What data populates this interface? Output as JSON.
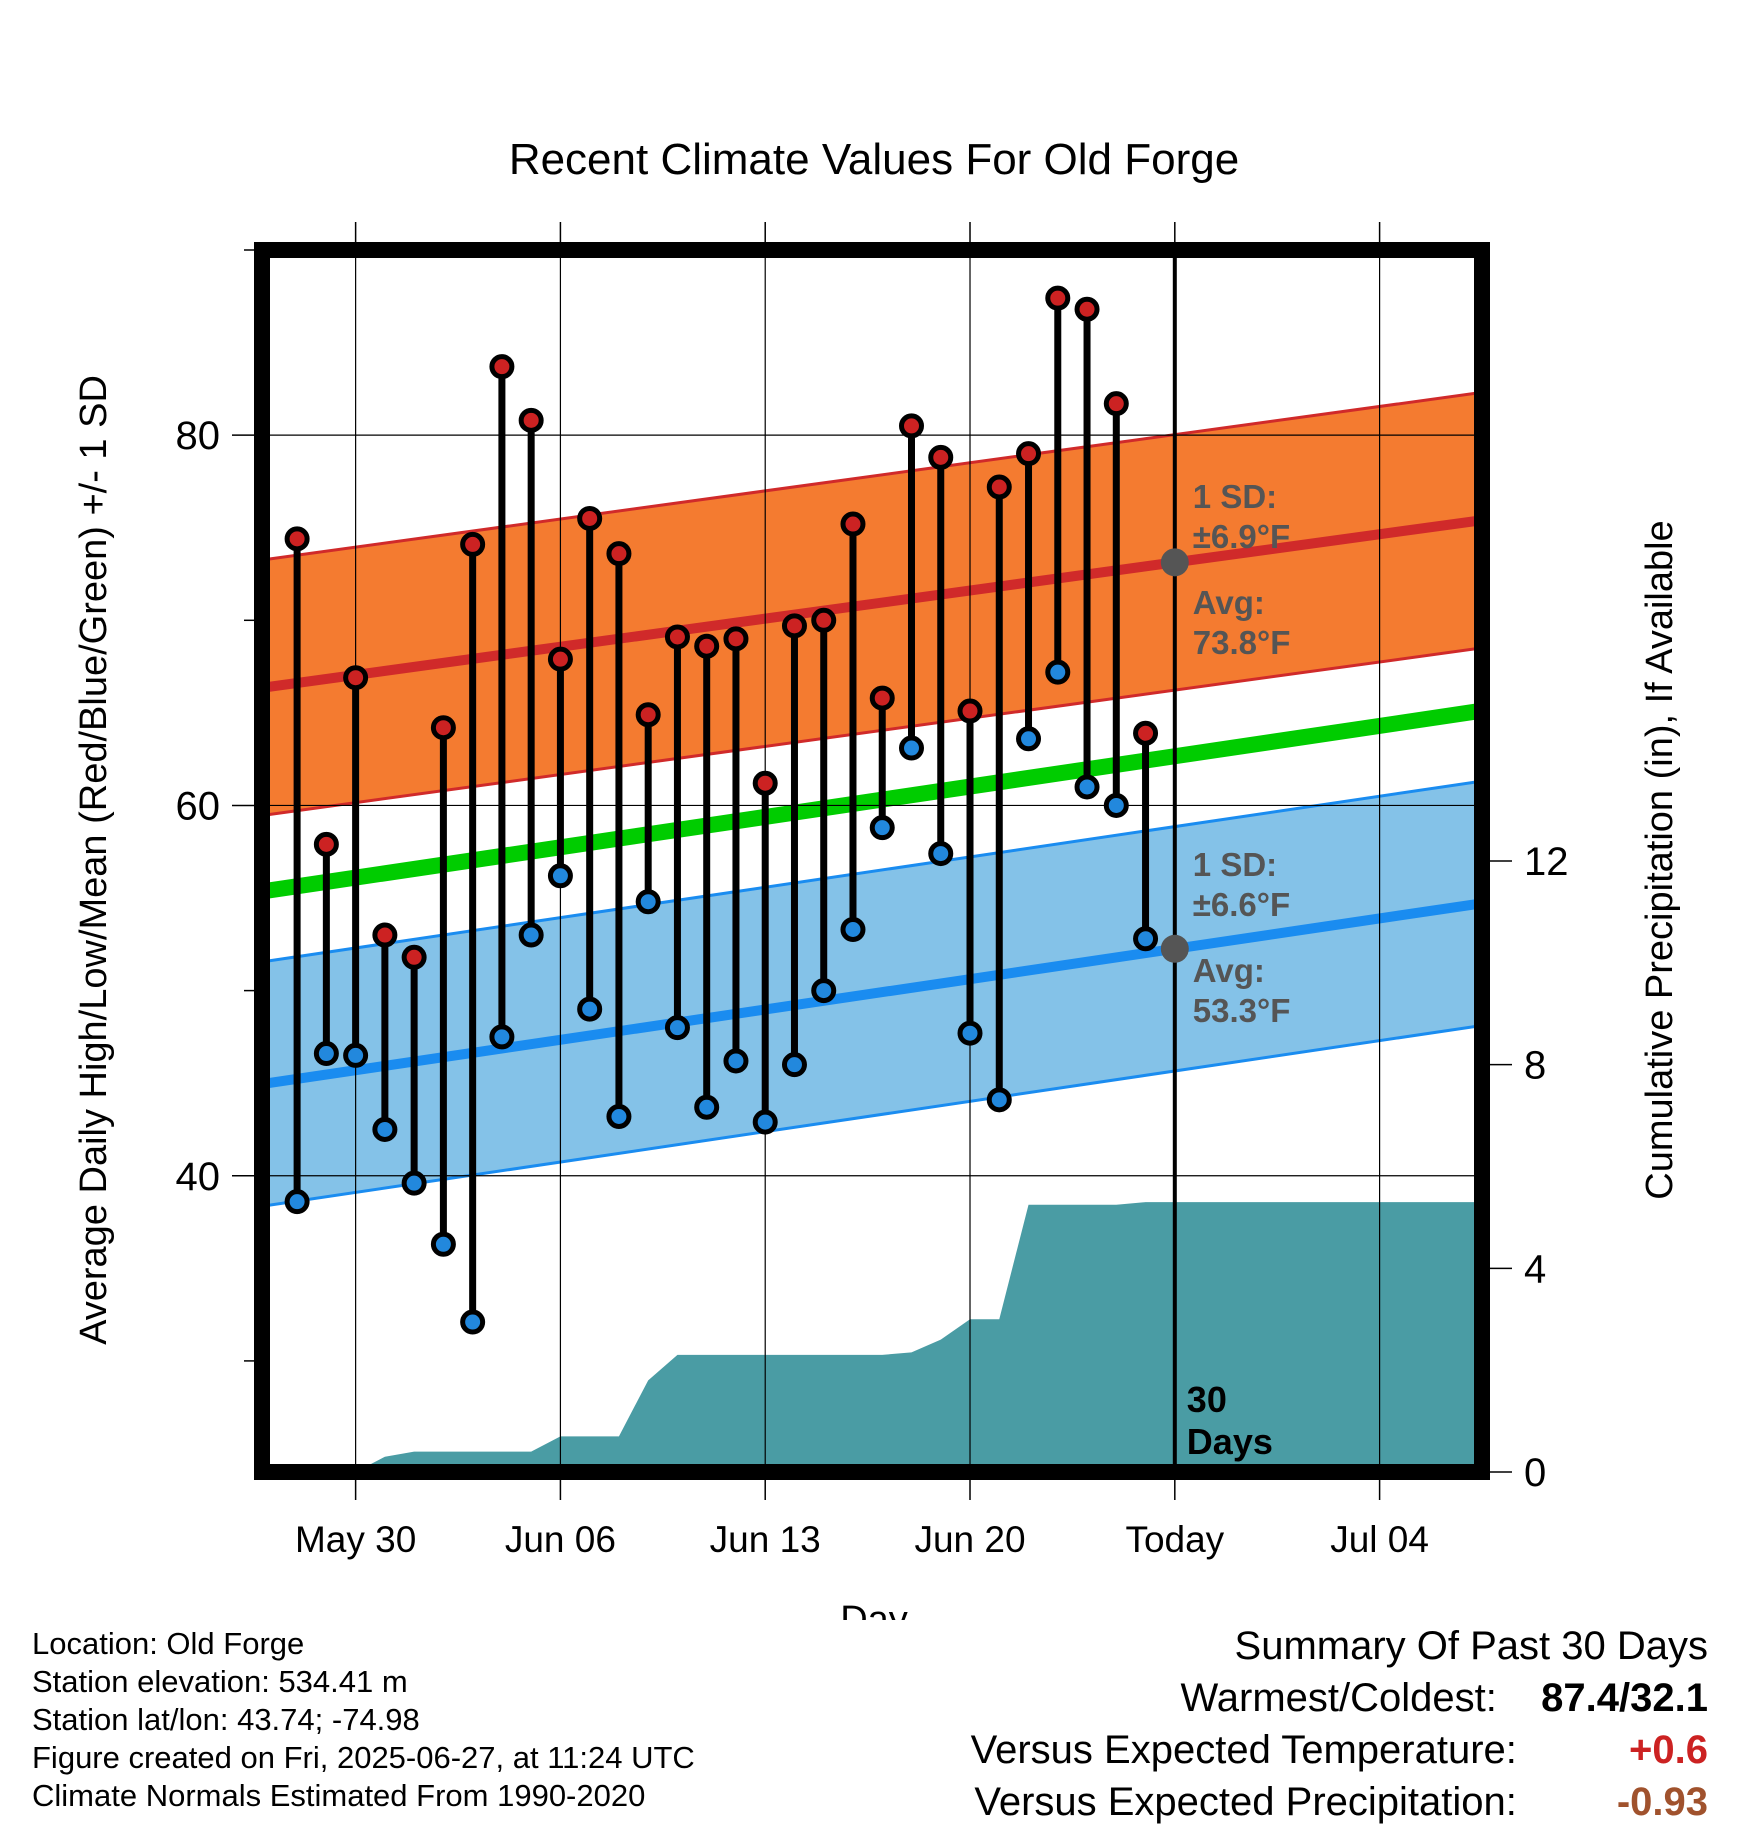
{
  "title": "Recent Climate Values For Old Forge",
  "chart_data": {
    "type": "line",
    "title": "Recent Climate Values For Old Forge",
    "xlabel": "Day",
    "ylabel": "Average Daily High/Low/Mean (Red/Blue/Green) +/- 1 SD",
    "y2label": "Cumulative Precipitation (in), If Available",
    "ylim": [
      24,
      90
    ],
    "y2lim": [
      0,
      24
    ],
    "yticks": [
      40,
      60,
      80
    ],
    "y2ticks": [
      0,
      4,
      8,
      12
    ],
    "xtick_labels": [
      "May 30",
      "Jun 06",
      "Jun 13",
      "Jun 20",
      "Today",
      "Jul 04"
    ],
    "xtick_days": [
      3,
      10,
      17,
      24,
      31,
      38
    ],
    "x_range_days": [
      -0.2,
      41.5
    ],
    "grid": true,
    "today_day": 31,
    "window_label_line1": "30",
    "window_label_line2": "Days",
    "days": [
      1,
      2,
      3,
      4,
      5,
      6,
      7,
      8,
      9,
      10,
      11,
      12,
      13,
      14,
      15,
      16,
      17,
      18,
      19,
      20,
      21,
      22,
      23,
      24,
      25,
      26,
      27,
      28,
      29,
      30
    ],
    "highs": [
      74.4,
      57.9,
      66.9,
      53.0,
      51.8,
      64.2,
      74.1,
      83.7,
      80.8,
      67.9,
      75.5,
      73.6,
      64.9,
      69.1,
      68.6,
      69.0,
      61.2,
      69.7,
      70.0,
      75.2,
      65.8,
      80.5,
      78.8,
      65.1,
      77.2,
      79.0,
      87.4,
      86.8,
      81.7,
      63.9
    ],
    "lows": [
      38.6,
      46.6,
      46.5,
      42.5,
      39.6,
      36.3,
      32.1,
      47.5,
      53.0,
      56.2,
      49.0,
      43.2,
      54.8,
      48.0,
      43.7,
      46.2,
      42.9,
      46.0,
      50.0,
      53.3,
      58.8,
      63.1,
      57.4,
      47.7,
      44.1,
      63.6,
      67.2,
      61.0,
      60.0,
      52.8
    ],
    "normals_days": [
      0,
      41
    ],
    "normal_high": [
      66.4,
      75.3
    ],
    "normal_low": [
      45.0,
      54.6
    ],
    "normal_mean": [
      55.4,
      65.0
    ],
    "high_sd": 6.9,
    "low_sd": 6.6,
    "precip_days": [
      3,
      4,
      5,
      6,
      7,
      8,
      9,
      10,
      11,
      12,
      13,
      14,
      15,
      16,
      17,
      18,
      19,
      20,
      21,
      22,
      23,
      24,
      25,
      26,
      27,
      28,
      29,
      30,
      31,
      41.5
    ],
    "precip_cumulative": [
      0.0,
      0.3,
      0.4,
      0.4,
      0.4,
      0.4,
      0.4,
      0.7,
      0.7,
      0.7,
      1.8,
      2.3,
      2.3,
      2.3,
      2.3,
      2.3,
      2.3,
      2.3,
      2.3,
      2.35,
      2.6,
      3.0,
      3.0,
      5.25,
      5.25,
      5.25,
      5.25,
      5.3,
      5.3,
      5.3
    ],
    "annotations": {
      "high_sd_line1": "1 SD:",
      "high_sd_line2": "±6.9°F",
      "high_avg_line1": "Avg:",
      "high_avg_line2": "73.8°F",
      "low_sd_line1": "1 SD:",
      "low_sd_line2": "±6.6°F",
      "low_avg_line1": "Avg:",
      "low_avg_line2": "53.3°F"
    },
    "colors": {
      "high_band": "#f47b30",
      "high_line": "#d02a2a",
      "low_band": "#84c2e8",
      "low_line": "#1a8cf0",
      "mean_line": "#00cc00",
      "precip": "#4a9ca4",
      "high_marker": "#cc2222",
      "low_marker": "#2288dd",
      "annotation_text": "#555555"
    }
  },
  "footer": {
    "location": "Location: Old Forge",
    "elevation": "Station elevation: 534.41 m",
    "latlon": "Station lat/lon: 43.74; -74.98",
    "created": "Figure created on Fri, 2025-06-27, at 11:24 UTC",
    "normals": "Climate Normals Estimated From 1990-2020"
  },
  "summary": {
    "heading": "Summary Of Past 30 Days",
    "warmest_coldest_label": "Warmest/Coldest:",
    "warmest_coldest_value": "87.4/32.1",
    "temp_label": "Versus Expected Temperature:",
    "temp_value": "+0.6",
    "temp_color": "#cc2222",
    "precip_label": "Versus Expected Precipitation:",
    "precip_value": "-0.93",
    "precip_color": "#a0522d"
  }
}
